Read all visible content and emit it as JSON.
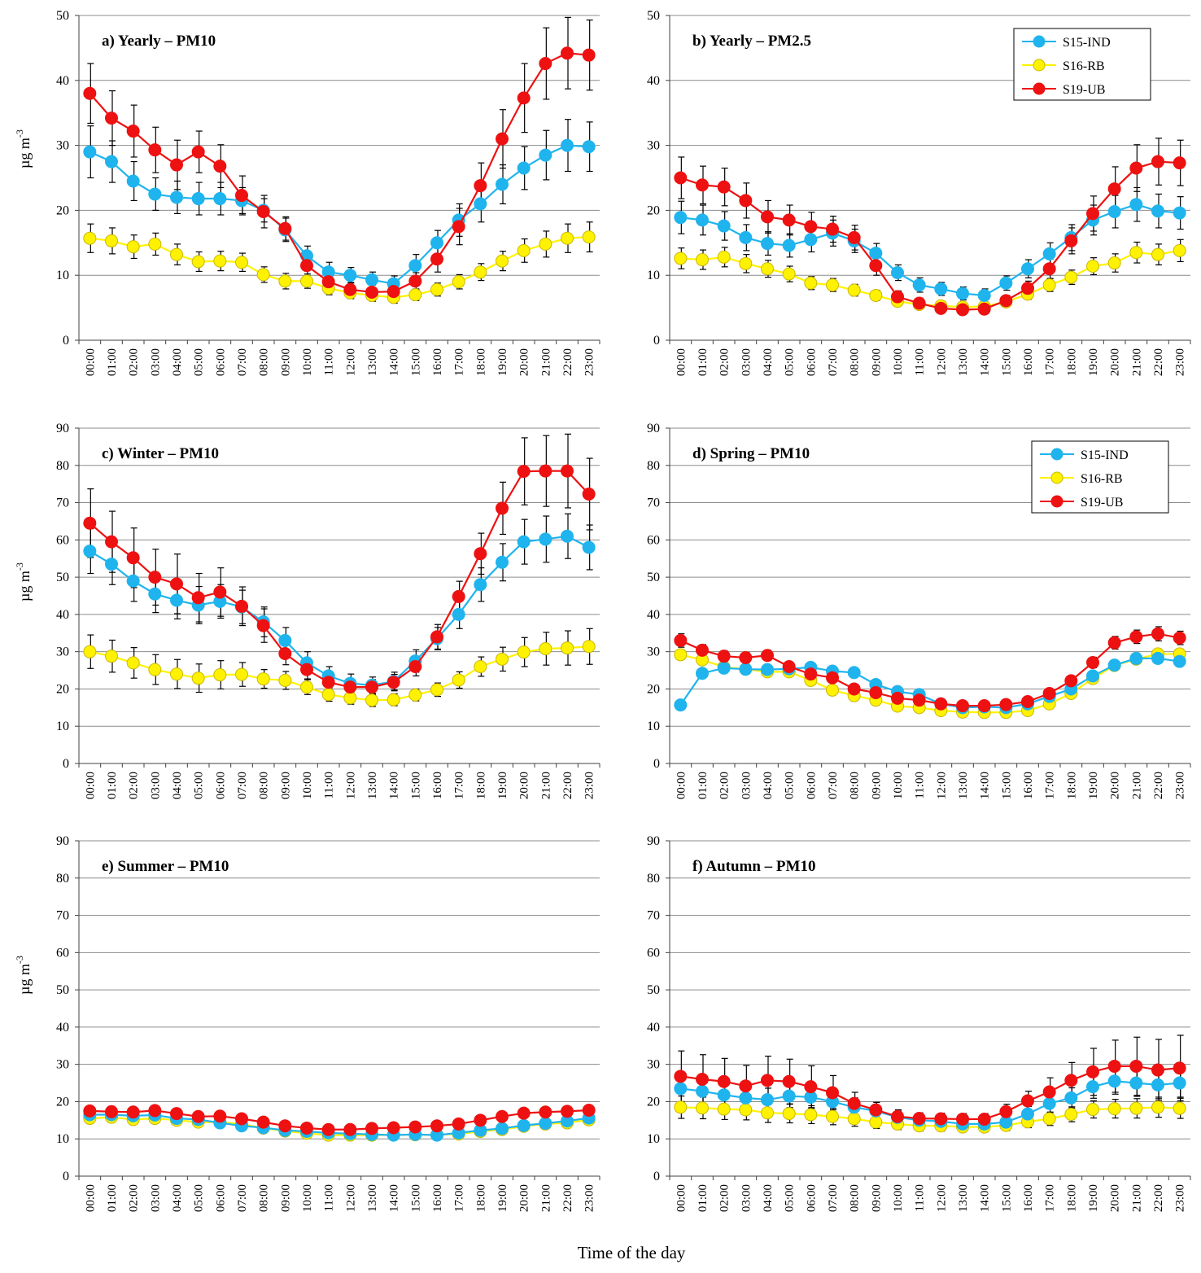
{
  "figure": {
    "xlabel": "Time of the day",
    "ylabel_text": "µg m",
    "ylabel_sup": "-3"
  },
  "colors": {
    "S15-IND": "#1fb4ee",
    "S16-RB": "#fff200",
    "S19-UB": "#ee1111"
  },
  "hours": [
    "00:00",
    "01:00",
    "02:00",
    "03:00",
    "04:00",
    "05:00",
    "06:00",
    "07:00",
    "08:00",
    "09:00",
    "10:00",
    "11:00",
    "12:00",
    "13:00",
    "14:00",
    "15:00",
    "16:00",
    "17:00",
    "18:00",
    "19:00",
    "20:00",
    "21:00",
    "22:00",
    "23:00"
  ],
  "chart_data": [
    {
      "id": "a",
      "type": "line",
      "title": "a) Yearly – PM10",
      "ylim": [
        0,
        50
      ],
      "ytick_step": 10,
      "xlabel": "Time of the day",
      "ylabel": "µg m-3",
      "legend": false,
      "series": [
        {
          "name": "S15-IND",
          "values": [
            29,
            27.5,
            24.5,
            22.5,
            22,
            21.8,
            21.8,
            21.5,
            20,
            17,
            13,
            10.5,
            10,
            9.3,
            8.7,
            11.5,
            15,
            18.5,
            21,
            24,
            26.5,
            28.5,
            30,
            29.8
          ],
          "error": [
            4,
            3.2,
            3.0,
            2.5,
            2.5,
            2.5,
            2.5,
            2,
            1.8,
            1.8,
            1.5,
            1.5,
            1.2,
            1.2,
            1.2,
            1.7,
            1.9,
            2.5,
            2.8,
            3,
            3.3,
            3.8,
            4,
            3.8
          ]
        },
        {
          "name": "S16-RB",
          "values": [
            15.7,
            15.3,
            14.4,
            14.8,
            13.2,
            12.1,
            12.2,
            12,
            10.1,
            9.1,
            9.1,
            8,
            7.3,
            6.9,
            6.6,
            7,
            7.8,
            9,
            10.5,
            12.2,
            13.8,
            14.8,
            15.7,
            15.9
          ],
          "error": [
            2.2,
            2.0,
            1.8,
            1.7,
            1.6,
            1.5,
            1.5,
            1.4,
            1.2,
            1.2,
            1.1,
            1.0,
            0.9,
            0.9,
            0.9,
            0.9,
            1.0,
            1.1,
            1.3,
            1.5,
            1.8,
            2.0,
            2.2,
            2.3
          ]
        },
        {
          "name": "S19-UB",
          "values": [
            38,
            34.2,
            32.2,
            29.3,
            27,
            29,
            26.8,
            22.3,
            19.8,
            17.2,
            11.5,
            9,
            7.8,
            7.4,
            7.5,
            9.1,
            12.5,
            17.5,
            23.8,
            31,
            37.3,
            42.6,
            44.2,
            43.9
          ],
          "error": [
            4.6,
            4.2,
            4.0,
            3.5,
            3.8,
            3.2,
            3.3,
            3.0,
            2.5,
            1.8,
            1.8,
            1.3,
            1.1,
            1.1,
            1.1,
            1.3,
            2.0,
            2.8,
            3.5,
            4.5,
            5.3,
            5.5,
            5.5,
            5.4
          ]
        }
      ]
    },
    {
      "id": "b",
      "type": "line",
      "title": "b) Yearly – PM2.5",
      "ylim": [
        0,
        50
      ],
      "ytick_step": 10,
      "xlabel": "Time of the day",
      "ylabel": "",
      "legend": true,
      "series": [
        {
          "name": "S15-IND",
          "values": [
            18.9,
            18.5,
            17.6,
            15.8,
            14.9,
            14.6,
            15.5,
            16.5,
            15.3,
            13.4,
            10.4,
            8.5,
            7.9,
            7.2,
            6.9,
            8.8,
            11,
            13.3,
            15.8,
            18.5,
            19.8,
            20.9,
            19.9,
            19.6
          ],
          "error": [
            2.5,
            2.3,
            2.2,
            2.0,
            1.8,
            1.8,
            1.9,
            2.0,
            1.8,
            1.5,
            1.2,
            1.1,
            1.0,
            1.0,
            1.0,
            1.1,
            1.4,
            1.7,
            2.0,
            2.3,
            2.5,
            2.6,
            2.6,
            2.5
          ]
        },
        {
          "name": "S16-RB",
          "values": [
            12.6,
            12.4,
            12.8,
            11.8,
            11,
            10.2,
            8.8,
            8.5,
            7.7,
            6.9,
            6,
            5.5,
            5.3,
            5.1,
            5.2,
            5.9,
            7.1,
            8.5,
            9.7,
            11.4,
            11.9,
            13.5,
            13.2,
            13.8
          ],
          "error": [
            1.6,
            1.5,
            1.5,
            1.4,
            1.3,
            1.2,
            1.0,
            1.0,
            0.9,
            0.8,
            0.7,
            0.7,
            0.6,
            0.6,
            0.6,
            0.7,
            0.8,
            1.0,
            1.1,
            1.3,
            1.4,
            1.6,
            1.6,
            1.7
          ]
        },
        {
          "name": "S19-UB",
          "values": [
            25,
            23.9,
            23.6,
            21.5,
            19,
            18.5,
            17.5,
            17.1,
            15.8,
            11.5,
            6.7,
            5.7,
            4.9,
            4.7,
            4.8,
            6.1,
            8,
            11,
            15.3,
            19.5,
            23.3,
            26.5,
            27.5,
            27.3
          ],
          "error": [
            3.2,
            2.9,
            2.9,
            2.7,
            2.5,
            2.3,
            2.2,
            2.0,
            1.9,
            1.5,
            0.9,
            0.8,
            0.7,
            0.7,
            0.7,
            0.8,
            1.1,
            1.5,
            2.0,
            2.7,
            3.4,
            3.6,
            3.6,
            3.5
          ]
        }
      ]
    },
    {
      "id": "c",
      "type": "line",
      "title": "c) Winter – PM10",
      "ylim": [
        0,
        90
      ],
      "ytick_step": 10,
      "xlabel": "Time of the day",
      "ylabel": "µg m-3",
      "legend": false,
      "series": [
        {
          "name": "S15-IND",
          "values": [
            57,
            53.5,
            49,
            45.5,
            43.8,
            42.5,
            43.5,
            42,
            38,
            33,
            27,
            23.5,
            21.5,
            21,
            22,
            27.5,
            33.5,
            40,
            48,
            54,
            59.5,
            60.2,
            61,
            58
          ],
          "error": [
            6,
            5.5,
            5.5,
            5,
            5,
            5,
            4.5,
            4.5,
            4,
            3.5,
            3,
            2.5,
            2.5,
            2.2,
            2.5,
            3,
            3,
            3.8,
            4.5,
            5,
            6,
            6.2,
            6,
            6
          ]
        },
        {
          "name": "S16-RB",
          "values": [
            30,
            28.8,
            27,
            25.2,
            24,
            22.9,
            23.8,
            23.9,
            22.7,
            22.3,
            20.5,
            18.5,
            17.6,
            17,
            17.1,
            18.4,
            19.8,
            22.4,
            26,
            28,
            29.9,
            30.8,
            31,
            31.4
          ],
          "error": [
            4.5,
            4.3,
            4.1,
            4.0,
            3.9,
            3.8,
            3.8,
            3.2,
            2.5,
            2.4,
            2.0,
            1.8,
            1.7,
            1.7,
            1.6,
            1.6,
            1.8,
            2.2,
            2.6,
            3.2,
            3.9,
            4.4,
            4.6,
            4.8
          ]
        },
        {
          "name": "S19-UB",
          "values": [
            64.5,
            59.5,
            55.2,
            50,
            48.2,
            44.5,
            46,
            42.2,
            37,
            29.5,
            25.2,
            21.8,
            20.5,
            20.5,
            21.8,
            26,
            34,
            44.8,
            56.3,
            68.5,
            78.4,
            78.5,
            78.5,
            72.3
          ],
          "error": [
            9.2,
            8.2,
            8.0,
            7.5,
            8.0,
            6.5,
            6.5,
            5.2,
            4.5,
            3.0,
            2.5,
            2.1,
            2.0,
            2.0,
            2.1,
            2.5,
            3.3,
            4.1,
            5.5,
            7.0,
            9.0,
            9.5,
            9.9,
            9.6
          ]
        }
      ]
    },
    {
      "id": "d",
      "type": "line",
      "title": "d) Spring – PM10",
      "ylim": [
        0,
        90
      ],
      "ytick_step": 10,
      "xlabel": "Time of the day",
      "ylabel": "",
      "legend": true,
      "series": [
        {
          "name": "S15-IND",
          "values": [
            15.7,
            24.2,
            25.6,
            25.3,
            25.2,
            25.4,
            25.8,
            24.8,
            24.4,
            21.2,
            19.3,
            18.5,
            16,
            15,
            15.2,
            15,
            16,
            18,
            20,
            23.5,
            26.4,
            28.2,
            28.2,
            27.4
          ],
          "error": [
            0,
            0,
            0,
            0,
            0,
            0,
            0,
            0,
            0,
            0,
            0,
            0,
            0,
            0,
            0,
            0,
            0,
            0,
            0,
            0,
            0,
            0,
            0,
            0
          ]
        },
        {
          "name": "S16-RB",
          "values": [
            29.2,
            27.8,
            25.9,
            25.3,
            24.6,
            24.6,
            22.3,
            19.7,
            18.2,
            17,
            15.4,
            15,
            14.2,
            13.8,
            13.7,
            13.7,
            14.2,
            16,
            18.8,
            22.8,
            26.3,
            28,
            29.4,
            29.4
          ],
          "error": [
            1.3,
            1.2,
            1.1,
            1.0,
            1.0,
            1.0,
            0.9,
            0.8,
            0.8,
            0.7,
            0.7,
            0.7,
            0.6,
            0.6,
            0.6,
            0.6,
            0.6,
            0.7,
            0.8,
            1.0,
            1.1,
            1.2,
            1.3,
            1.3
          ]
        },
        {
          "name": "S19-UB",
          "values": [
            33,
            30.4,
            28.8,
            28.4,
            29,
            26,
            24,
            23,
            20,
            19,
            17.5,
            17,
            16,
            15.5,
            15.5,
            15.8,
            16.6,
            18.8,
            22.2,
            27.1,
            32.4,
            34,
            34.8,
            33.7
          ],
          "error": [
            1.8,
            1.5,
            1.4,
            1.4,
            1.4,
            1.3,
            1.2,
            1.1,
            1.0,
            1.0,
            0.9,
            0.9,
            0.8,
            0.8,
            0.8,
            0.8,
            0.9,
            1.0,
            1.2,
            1.4,
            1.7,
            1.8,
            1.9,
            1.8
          ]
        }
      ]
    },
    {
      "id": "e",
      "type": "line",
      "title": "e) Summer – PM10",
      "ylim": [
        0,
        90
      ],
      "ytick_step": 10,
      "xlabel": "Time of the day",
      "ylabel": "µg m-3",
      "legend": false,
      "series": [
        {
          "name": "S15-IND",
          "values": [
            16.5,
            16.5,
            16.2,
            16.4,
            15.5,
            15.2,
            14.3,
            13.5,
            13,
            12.3,
            12,
            11.6,
            11.4,
            11.2,
            11,
            11.2,
            11,
            11.6,
            12.3,
            12.8,
            13.6,
            14.2,
            14.8,
            15.6
          ],
          "error": [
            0,
            0,
            0,
            0,
            0,
            0,
            0,
            0,
            0,
            0,
            0,
            0,
            0,
            0,
            0,
            0,
            0,
            0,
            0,
            0,
            0,
            0,
            0,
            0
          ]
        },
        {
          "name": "S16-RB",
          "values": [
            15.5,
            15.8,
            15.2,
            15.5,
            15,
            14.5,
            14.5,
            14,
            12.9,
            12.1,
            11.5,
            11,
            11,
            11,
            11.1,
            11.1,
            11.1,
            11.3,
            12,
            12.5,
            13.4,
            14,
            14.3,
            15.1
          ],
          "error": [
            0,
            0,
            0,
            0,
            0,
            0,
            0,
            0,
            0,
            0,
            0,
            0,
            0,
            0,
            0,
            0,
            0,
            0,
            0,
            0,
            0,
            0,
            0,
            0
          ]
        },
        {
          "name": "S19-UB",
          "values": [
            17.5,
            17.3,
            17.2,
            17.6,
            16.8,
            16,
            16.1,
            15.4,
            14.5,
            13.5,
            12.9,
            12.5,
            12.5,
            12.8,
            13,
            13.2,
            13.5,
            14,
            15,
            16,
            16.9,
            17.2,
            17.4,
            17.7
          ],
          "error": [
            0.9,
            0.8,
            0.8,
            0.8,
            0.8,
            0.8,
            0.8,
            0.7,
            0.7,
            0.6,
            0.6,
            0.6,
            0.6,
            0.6,
            0.6,
            0.6,
            0.6,
            0.7,
            0.7,
            0.8,
            0.8,
            0.8,
            0.8,
            0.9
          ]
        }
      ]
    },
    {
      "id": "f",
      "type": "line",
      "title": "f) Autumn – PM10",
      "ylim": [
        0,
        90
      ],
      "ytick_step": 10,
      "xlabel": "Time of the day",
      "ylabel": "",
      "legend": false,
      "series": [
        {
          "name": "S15-IND",
          "values": [
            23.5,
            22.8,
            21.8,
            21,
            20.5,
            21.5,
            21.2,
            20,
            18.5,
            17.5,
            15.8,
            15,
            14.7,
            14,
            14,
            14.5,
            16.7,
            19.5,
            21,
            24,
            25.5,
            25,
            24.5,
            25
          ],
          "error": [
            3.5,
            3.5,
            3.3,
            3.2,
            3.1,
            3.1,
            3.0,
            2.8,
            2.5,
            2.3,
            2.0,
            1.8,
            1.7,
            1.6,
            1.6,
            1.8,
            2.0,
            2.4,
            2.7,
            3.1,
            3.5,
            3.6,
            3.7,
            3.8
          ]
        },
        {
          "name": "S16-RB",
          "values": [
            18.5,
            18.3,
            18,
            17.8,
            17,
            16.8,
            16.5,
            16,
            15.4,
            14.5,
            14,
            13.5,
            13.5,
            13.2,
            13.2,
            13.6,
            14.6,
            15.4,
            16.6,
            17.9,
            18.1,
            18.2,
            18.5,
            18.2
          ],
          "error": [
            3.0,
            2.9,
            2.8,
            2.7,
            2.6,
            2.5,
            2.4,
            2.2,
            2.0,
            1.7,
            1.5,
            1.4,
            1.4,
            1.3,
            1.3,
            1.4,
            1.6,
            1.8,
            2.0,
            2.3,
            2.5,
            2.6,
            2.7,
            2.7
          ]
        },
        {
          "name": "S19-UB",
          "values": [
            26.8,
            26,
            25.4,
            24.2,
            25.7,
            25.4,
            24,
            22.4,
            19.5,
            17.8,
            16,
            15.5,
            15.4,
            15.3,
            15.3,
            17.3,
            20.2,
            22.6,
            25.7,
            28,
            29.5,
            29.5,
            28.5,
            29
          ],
          "error": [
            6.8,
            6.6,
            6.2,
            5.5,
            6.5,
            6.0,
            5.6,
            4.6,
            3.0,
            2.0,
            1.5,
            1.5,
            1.5,
            1.5,
            1.5,
            2.0,
            2.6,
            3.8,
            4.8,
            6.3,
            7.0,
            7.8,
            8.2,
            8.8
          ]
        }
      ]
    }
  ]
}
